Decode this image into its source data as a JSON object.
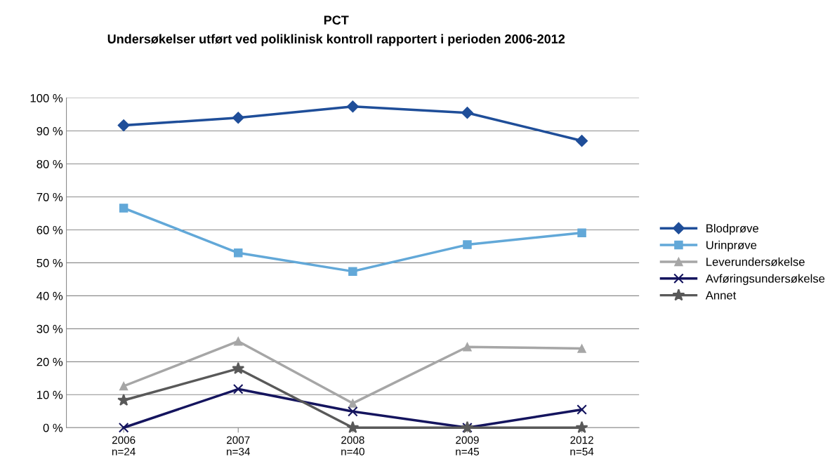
{
  "chart_data": {
    "type": "line",
    "title": "PCT",
    "subtitle": "Undersøkelser utført ved poliklinisk kontroll rapportert i perioden 2006-2012",
    "categories": [
      "2006\nn=24",
      "2007\nn=34",
      "2008\nn=40",
      "2009\nn=45",
      "2012\nn=54"
    ],
    "series": [
      {
        "name": "Blodprøve",
        "color": "#1f4e99",
        "marker": "diamond",
        "values": [
          91.7,
          94.0,
          97.4,
          95.5,
          87.0
        ]
      },
      {
        "name": "Urinprøve",
        "color": "#62a8d8",
        "marker": "square",
        "values": [
          66.6,
          53.0,
          47.4,
          55.5,
          59.1
        ]
      },
      {
        "name": "Leverundersøkelse",
        "color": "#a6a6a6",
        "marker": "triangle",
        "values": [
          12.6,
          26.2,
          7.4,
          24.5,
          24.0
        ]
      },
      {
        "name": "Avføringsundersøkelse",
        "color": "#14145e",
        "marker": "cross",
        "values": [
          0,
          11.7,
          4.9,
          0,
          5.5
        ]
      },
      {
        "name": "Annet",
        "color": "#595959",
        "marker": "star",
        "values": [
          8.3,
          17.9,
          0,
          0,
          0
        ]
      }
    ],
    "ylim": [
      0,
      100
    ],
    "yticks": [
      {
        "value": 0,
        "label": "0 %"
      },
      {
        "value": 10,
        "label": "10 %"
      },
      {
        "value": 20,
        "label": "20 %"
      },
      {
        "value": 30,
        "label": "30 %"
      },
      {
        "value": 40,
        "label": "40 %"
      },
      {
        "value": 50,
        "label": "50 %"
      },
      {
        "value": 60,
        "label": "60 %"
      },
      {
        "value": 70,
        "label": "70 %"
      },
      {
        "value": 80,
        "label": "80 %"
      },
      {
        "value": 90,
        "label": "90 %"
      },
      {
        "value": 100,
        "label": "100 %"
      }
    ],
    "grid": "y",
    "legend": "right",
    "line_style": "solid"
  }
}
